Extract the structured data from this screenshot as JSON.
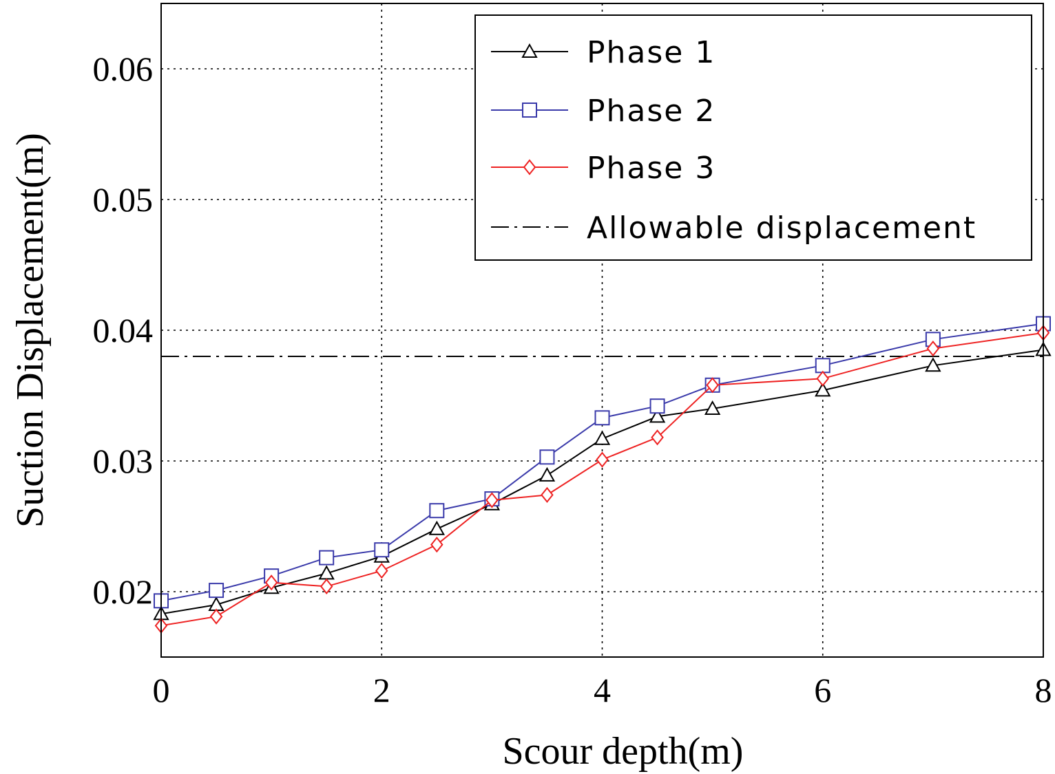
{
  "chart_data": {
    "type": "line",
    "xlabel": "Scour depth(m)",
    "ylabel": "Suction Displacement(m)",
    "xlim": [
      0,
      8
    ],
    "ylim": [
      0.015,
      0.065
    ],
    "xticks": [
      0,
      2,
      4,
      6,
      8
    ],
    "xtick_labels": [
      "0",
      "2",
      "4",
      "6",
      "8"
    ],
    "yticks": [
      0.02,
      0.03,
      0.04,
      0.05,
      0.06
    ],
    "ytick_labels": [
      "0.02",
      "0.03",
      "0.04",
      "0.05",
      "0.06"
    ],
    "grid": true,
    "legend_position": "top-right",
    "series": [
      {
        "name": "Phase 1",
        "color": "#000000",
        "marker": "triangle",
        "x": [
          0,
          0.5,
          1,
          1.5,
          2,
          2.5,
          3,
          3.5,
          4,
          4.5,
          5,
          6,
          7,
          8
        ],
        "y": [
          0.0183,
          0.019,
          0.0203,
          0.0214,
          0.0227,
          0.0248,
          0.0267,
          0.0289,
          0.0317,
          0.0334,
          0.034,
          0.0354,
          0.0373,
          0.0385
        ]
      },
      {
        "name": "Phase 2",
        "color": "#3a3aaa",
        "marker": "square",
        "x": [
          0,
          0.5,
          1,
          1.5,
          2,
          2.5,
          3,
          3.5,
          4,
          4.5,
          5,
          6,
          7,
          8
        ],
        "y": [
          0.0193,
          0.0201,
          0.0212,
          0.0226,
          0.0232,
          0.0262,
          0.0271,
          0.0303,
          0.0333,
          0.0342,
          0.0358,
          0.0373,
          0.0393,
          0.0405
        ]
      },
      {
        "name": "Phase 3",
        "color": "#ee2222",
        "marker": "diamond",
        "x": [
          0,
          0.5,
          1,
          1.5,
          2,
          2.5,
          3,
          3.5,
          4,
          4.5,
          5,
          6,
          7,
          8
        ],
        "y": [
          0.0174,
          0.0181,
          0.0207,
          0.0204,
          0.0216,
          0.0236,
          0.027,
          0.0274,
          0.0301,
          0.0318,
          0.0358,
          0.0363,
          0.0386,
          0.0398
        ]
      }
    ],
    "reference_lines": [
      {
        "name": "Allowable displacement",
        "y": 0.038,
        "color": "#000000",
        "style": "dash-dot"
      }
    ]
  }
}
